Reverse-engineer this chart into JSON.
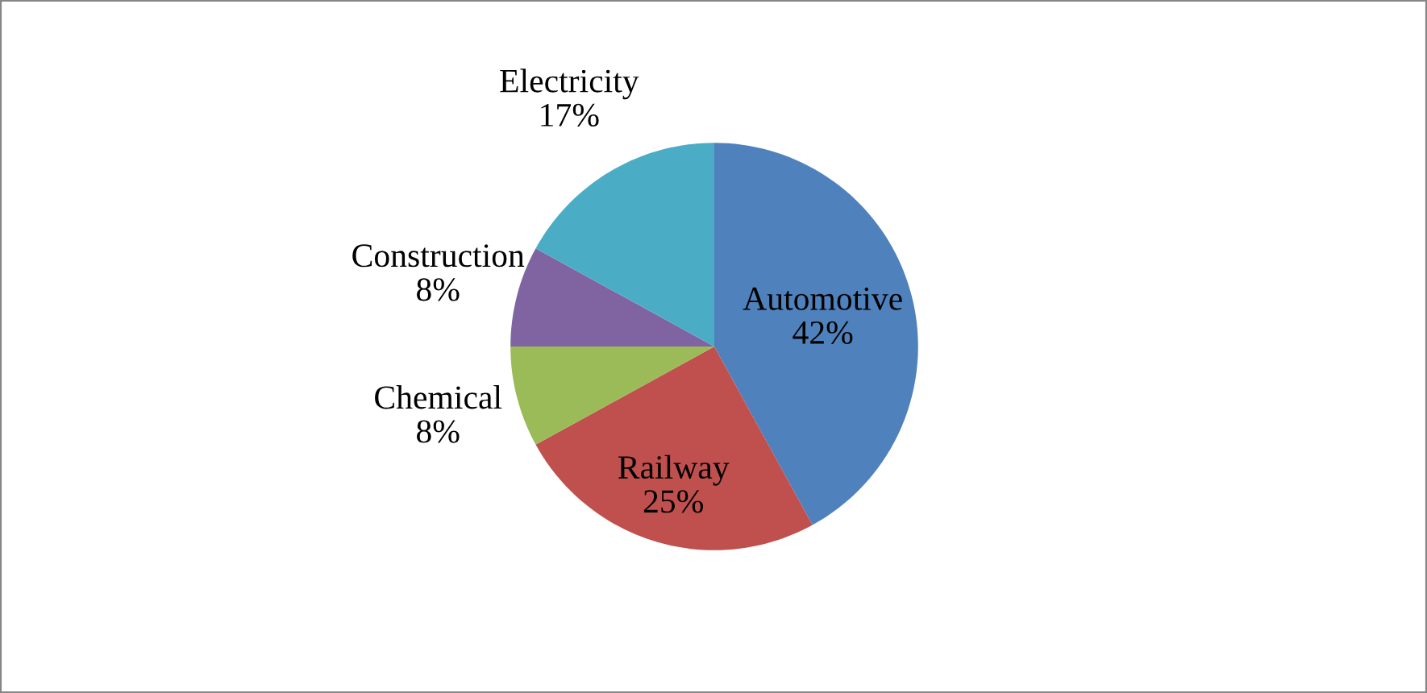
{
  "chart_data": {
    "type": "pie",
    "categories": [
      "Automotive",
      "Railway",
      "Chemical",
      "Construction",
      "Electricity"
    ],
    "values": [
      42,
      25,
      8,
      8,
      17
    ],
    "colors": [
      "#4f81bd",
      "#c0504d",
      "#9bbb59",
      "#8064a2",
      "#4bacc6"
    ],
    "value_labels": [
      "42%",
      "25%",
      "8%",
      "8%",
      "17%"
    ],
    "legend": false
  }
}
